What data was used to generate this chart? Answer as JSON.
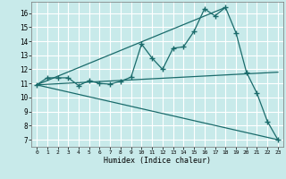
{
  "title": "",
  "xlabel": "Humidex (Indice chaleur)",
  "ylabel": "",
  "xlim": [
    -0.5,
    23.5
  ],
  "ylim": [
    6.5,
    16.8
  ],
  "xticks": [
    0,
    1,
    2,
    3,
    4,
    5,
    6,
    7,
    8,
    9,
    10,
    11,
    12,
    13,
    14,
    15,
    16,
    17,
    18,
    19,
    20,
    21,
    22,
    23
  ],
  "yticks": [
    7,
    8,
    9,
    10,
    11,
    12,
    13,
    14,
    15,
    16
  ],
  "bg_color": "#c8eaea",
  "grid_color": "#ffffff",
  "line_color": "#1a6b6b",
  "main_line_x": [
    0,
    1,
    2,
    3,
    4,
    5,
    6,
    7,
    8,
    9,
    10,
    11,
    12,
    13,
    14,
    15,
    16,
    17,
    18,
    19,
    20,
    21,
    22,
    23
  ],
  "main_line_y": [
    10.9,
    11.4,
    11.4,
    11.4,
    10.85,
    11.2,
    11.0,
    10.95,
    11.15,
    11.45,
    13.8,
    12.8,
    12.0,
    13.5,
    13.6,
    14.7,
    16.3,
    15.8,
    16.4,
    14.6,
    11.8,
    10.3,
    8.3,
    7.0
  ],
  "straight_lines": [
    {
      "x": [
        0,
        23
      ],
      "y": [
        10.9,
        11.8
      ]
    },
    {
      "x": [
        0,
        23
      ],
      "y": [
        10.9,
        7.0
      ]
    },
    {
      "x": [
        0,
        18
      ],
      "y": [
        10.9,
        16.4
      ]
    }
  ]
}
